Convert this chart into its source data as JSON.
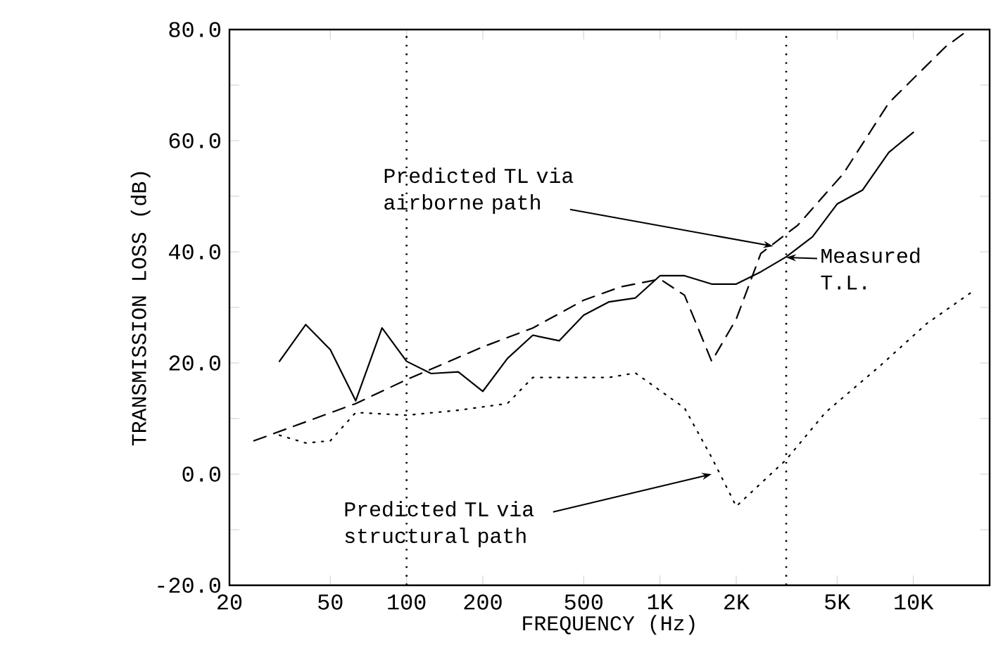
{
  "chart_data": {
    "type": "line",
    "xlabel": "FREQUENCY (Hz)",
    "ylabel": "TRANSMISSION LOSS (dB)",
    "log": "x",
    "grid": false,
    "marker": "none",
    "xlim": [
      20,
      20000
    ],
    "ylim": [
      -20,
      80
    ],
    "xticks": [
      20,
      50,
      100,
      200,
      500,
      {
        "value": 1000,
        "label": "1K"
      },
      {
        "value": 2000,
        "label": "2K"
      },
      {
        "value": 5000,
        "label": "5K"
      },
      {
        "value": 10000,
        "label": "10K"
      }
    ],
    "yticks": [
      {
        "value": -20,
        "label": "-20.0"
      },
      {
        "value": -10,
        "label": null
      },
      {
        "value": 0,
        "label": "0.0"
      },
      {
        "value": 10,
        "label": null
      },
      {
        "value": 20,
        "label": "20.0"
      },
      {
        "value": 30,
        "label": null
      },
      {
        "value": 40,
        "label": "40.0"
      },
      {
        "value": 50,
        "label": null
      },
      {
        "value": 60,
        "label": "60.0"
      },
      {
        "value": 70,
        "label": null
      },
      {
        "value": 80,
        "label": "80.0"
      }
    ],
    "series": [
      {
        "color": "#000000",
        "line_style": "solid",
        "x": [
          31.5,
          40,
          50,
          63,
          80,
          100,
          125,
          160,
          200,
          250,
          315,
          400,
          500,
          630,
          800,
          1000,
          1250,
          1600,
          2000,
          2500,
          3150,
          4000,
          5000,
          6300,
          8000,
          10000
        ],
        "values": [
          20.3,
          26.9,
          22.4,
          13.2,
          26.3,
          20.3,
          18.1,
          18.4,
          14.9,
          20.8,
          25.0,
          24.0,
          28.6,
          31.0,
          31.7,
          35.7,
          35.7,
          34.2,
          34.2,
          36.4,
          39.1,
          42.7,
          48.6,
          51.1,
          57.9,
          61.5
        ]
      },
      {
        "color": "#000000",
        "line_style": "dashed",
        "x": [
          25,
          63,
          100,
          200,
          315,
          500,
          700,
          1000,
          1250,
          1600,
          2000,
          2500,
          3500,
          5300,
          8000,
          13400,
          16600
        ],
        "values": [
          6.0,
          12.7,
          17.0,
          22.9,
          26.3,
          31.3,
          33.7,
          35.1,
          32.2,
          20.3,
          27.9,
          39.7,
          44.8,
          54.1,
          66.8,
          76.9,
          80.0
        ]
      },
      {
        "color": "#000000",
        "line_style": "dotted",
        "x": [
          31.5,
          40,
          50,
          63,
          100,
          160,
          250,
          315,
          630,
          800,
          1250,
          1600,
          2000,
          3150,
          4500,
          7400,
          11300,
          17300
        ],
        "values": [
          7.0,
          5.6,
          6.0,
          11.1,
          10.6,
          11.5,
          12.7,
          17.4,
          17.4,
          18.2,
          11.9,
          3.0,
          -5.8,
          2.6,
          11.1,
          19.5,
          27.1,
          33.0
        ]
      }
    ],
    "ref_lines": [
      {
        "axis": "x",
        "value": 100,
        "color": "#000000",
        "line_style": "dotted"
      },
      {
        "axis": "x",
        "value": 3150,
        "color": "#000000",
        "line_style": "dotted"
      }
    ],
    "annotations": [
      {
        "text": "Predicted TL via airborne path",
        "x": 2800,
        "y": 41
      },
      {
        "text": "Measured T.L.",
        "x": 3150,
        "y": 39
      },
      {
        "text": "Predicted TL via structural path",
        "x": 1600,
        "y": 0
      }
    ]
  }
}
